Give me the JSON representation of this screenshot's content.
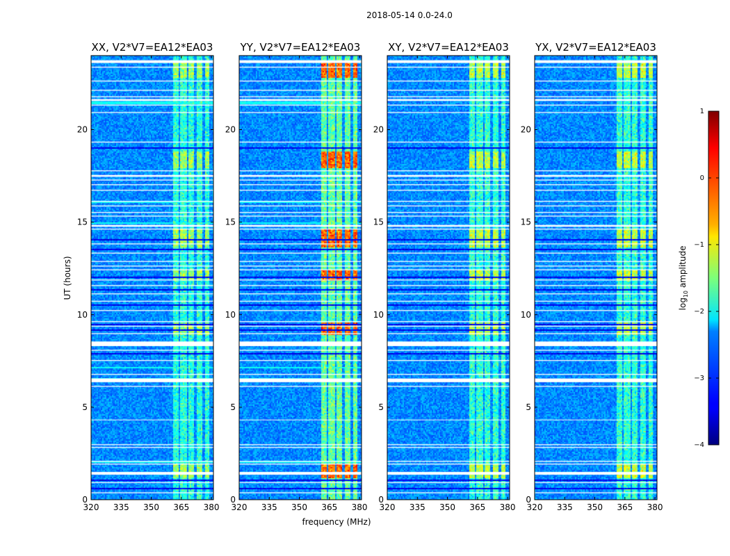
{
  "figure": {
    "suptitle": "2018-05-14 0.0-24.0",
    "xlabel": "frequency (MHz)",
    "ylabel": "UT (hours)"
  },
  "chart_data": {
    "type": "heatmap",
    "title": "2018-05-14 0.0-24.0",
    "xlabel": "frequency (MHz)",
    "ylabel": "UT (hours)",
    "xlim": [
      320,
      381
    ],
    "ylim": [
      0,
      24
    ],
    "xticks": [
      "320",
      "335",
      "350",
      "365",
      "380"
    ],
    "xtick_values": [
      320,
      335,
      350,
      365,
      380
    ],
    "yticks": [
      "0",
      "5",
      "10",
      "15",
      "20"
    ],
    "ytick_values": [
      0,
      5,
      10,
      15,
      20
    ],
    "colormap": "jet",
    "colorbar": {
      "label": "log₁₀ amplitude",
      "range": [
        -4,
        1
      ],
      "ticks": [
        "1",
        "0",
        "−1",
        "−2",
        "−3",
        "−4"
      ],
      "tick_values": [
        1,
        0,
        -1,
        -2,
        -3,
        -4
      ]
    },
    "panels": [
      {
        "title": "XX, V2*V7=EA12*EA03",
        "rfi_boost": 0.0,
        "cyan_rows": true
      },
      {
        "title": "YY, V2*V7=EA12*EA03",
        "rfi_boost": 0.18,
        "cyan_rows": true
      },
      {
        "title": "XY, V2*V7=EA12*EA03",
        "rfi_boost": 0.02,
        "cyan_rows": false
      },
      {
        "title": "YX, V2*V7=EA12*EA03",
        "rfi_boost": 0.03,
        "cyan_rows": false
      }
    ],
    "rfi_band_MHz": [
      [
        361.0,
        363.5
      ],
      [
        364.5,
        367.5
      ],
      [
        368.5,
        371.0
      ],
      [
        372.5,
        375.5
      ],
      [
        376.5,
        379.0
      ]
    ],
    "rfi_strong_hours": [
      [
        1.2,
        1.9
      ],
      [
        8.9,
        9.6
      ],
      [
        11.8,
        12.4
      ],
      [
        13.6,
        14.6
      ],
      [
        17.9,
        18.8
      ],
      [
        22.8,
        23.6
      ]
    ],
    "flagged_hours": [
      [
        0.35,
        0.4
      ],
      [
        0.9,
        0.95
      ],
      [
        1.35,
        1.5
      ],
      [
        1.9,
        1.95
      ],
      [
        2.05,
        2.1
      ],
      [
        2.8,
        2.85
      ],
      [
        2.95,
        3.0
      ],
      [
        4.3,
        4.33
      ],
      [
        6.1,
        6.15
      ],
      [
        6.35,
        6.55
      ],
      [
        6.75,
        6.8
      ],
      [
        7.5,
        7.55
      ],
      [
        8.05,
        8.1
      ],
      [
        8.3,
        8.55
      ],
      [
        8.95,
        9.0
      ],
      [
        9.35,
        9.4
      ],
      [
        9.6,
        9.65
      ],
      [
        10.2,
        10.25
      ],
      [
        10.7,
        10.75
      ],
      [
        11.1,
        11.15
      ],
      [
        11.55,
        11.6
      ],
      [
        11.85,
        11.9
      ],
      [
        12.4,
        12.45
      ],
      [
        12.6,
        12.65
      ],
      [
        12.85,
        12.9
      ],
      [
        13.3,
        13.35
      ],
      [
        13.8,
        13.85
      ],
      [
        14.6,
        14.65
      ],
      [
        14.75,
        14.85
      ],
      [
        15.3,
        15.35
      ],
      [
        15.5,
        15.55
      ],
      [
        15.85,
        15.9
      ],
      [
        16.1,
        16.15
      ],
      [
        16.7,
        16.75
      ],
      [
        17.0,
        17.05
      ],
      [
        17.25,
        17.3
      ],
      [
        17.45,
        17.55
      ],
      [
        17.75,
        17.8
      ],
      [
        19.3,
        19.35
      ],
      [
        20.9,
        20.95
      ],
      [
        21.3,
        21.35
      ],
      [
        21.55,
        21.65
      ],
      [
        21.75,
        21.8
      ],
      [
        22.1,
        22.15
      ],
      [
        22.6,
        22.65
      ],
      [
        23.35,
        23.4
      ],
      [
        23.6,
        23.75
      ]
    ],
    "dark_hours": [
      [
        0.6,
        0.65
      ],
      [
        1.05,
        1.1
      ],
      [
        9.15,
        9.2
      ],
      [
        9.45,
        9.5
      ],
      [
        10.5,
        10.55
      ],
      [
        10.9,
        10.95
      ],
      [
        11.3,
        11.35
      ],
      [
        12.0,
        12.05
      ],
      [
        13.5,
        13.55
      ],
      [
        14.0,
        14.05
      ],
      [
        19.0,
        19.05
      ],
      [
        7.85,
        7.9
      ]
    ],
    "cyan_hours": [
      [
        2.0,
        2.05
      ],
      [
        6.45,
        6.55
      ],
      [
        7.1,
        7.15
      ],
      [
        12.7,
        12.75
      ],
      [
        14.9,
        14.95
      ],
      [
        16.05,
        16.1
      ],
      [
        21.4,
        21.5
      ]
    ]
  }
}
